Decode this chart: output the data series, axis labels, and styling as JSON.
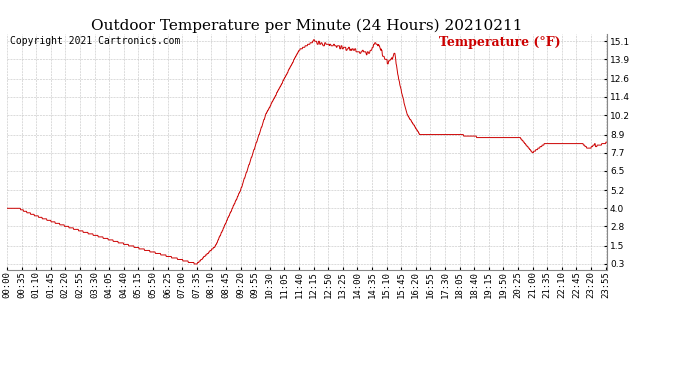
{
  "title": "Outdoor Temperature per Minute (24 Hours) 20210211",
  "copyright_text": "Copyright 2021 Cartronics.com",
  "legend_label": "Temperature (°F)",
  "line_color": "#cc0000",
  "legend_color": "#cc0000",
  "copyright_color": "#000000",
  "background_color": "#ffffff",
  "grid_color": "#bbbbbb",
  "yticks": [
    0.3,
    1.5,
    2.8,
    4.0,
    5.2,
    6.5,
    7.7,
    8.9,
    10.2,
    11.4,
    12.6,
    13.9,
    15.1
  ],
  "ylim": [
    -0.1,
    15.6
  ],
  "total_minutes": 1440,
  "title_fontsize": 11,
  "tick_fontsize": 6.5,
  "legend_fontsize": 9,
  "copyright_fontsize": 7
}
